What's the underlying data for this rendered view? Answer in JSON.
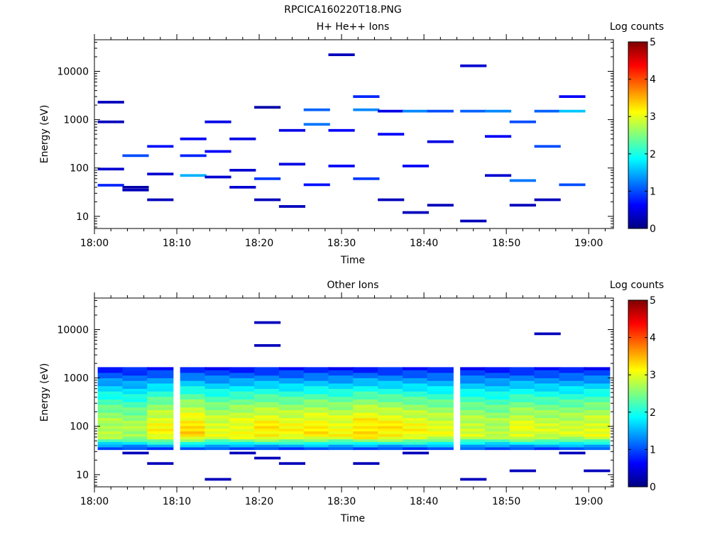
{
  "figure_title": "RPCICA160220T18.PNG",
  "colors": {
    "colormap": [
      "#00007f",
      "#0000ff",
      "#007fff",
      "#00ffff",
      "#7fff7f",
      "#ffff00",
      "#ff7f00",
      "#ff0000",
      "#7f0000"
    ],
    "axis": "#000000",
    "background": "#ffffff"
  },
  "chart_data": [
    {
      "type": "heatmap",
      "title": "H+ He++ Ions",
      "xlabel": "Time",
      "ylabel": "Energy (eV)",
      "x_tick_labels": [
        "18:00",
        "18:10",
        "18:20",
        "18:30",
        "18:40",
        "18:50",
        "19:00"
      ],
      "xlim": [
        "18:00",
        "19:03"
      ],
      "y_scale": "log",
      "ylim": [
        5.6,
        45000
      ],
      "y_tick_labels": [
        "10",
        "100",
        "1000",
        "10000"
      ],
      "colorbar": {
        "label": "Log counts",
        "range": [
          0,
          5
        ],
        "tick_labels": [
          "0",
          "1",
          "2",
          "3",
          "4",
          "5"
        ]
      },
      "time_bins": [
        "18:02",
        "18:05",
        "18:08",
        "18:12",
        "18:15",
        "18:18",
        "18:21",
        "18:24",
        "18:27",
        "18:30",
        "18:33",
        "18:36",
        "18:39",
        "18:42",
        "18:46",
        "18:49",
        "18:52",
        "18:55",
        "18:58",
        "19:01"
      ],
      "cells": [
        {
          "t": 0,
          "e": 2300,
          "v": 0.3
        },
        {
          "t": 0,
          "e": 900,
          "v": 0.3
        },
        {
          "t": 0,
          "e": 95,
          "v": 0.4
        },
        {
          "t": 0,
          "e": 44,
          "v": 0.8
        },
        {
          "t": 1,
          "e": 40,
          "v": 0.2
        },
        {
          "t": 1,
          "e": 35,
          "v": 0.3
        },
        {
          "t": 1,
          "e": 180,
          "v": 1.0
        },
        {
          "t": 2,
          "e": 75,
          "v": 0.4
        },
        {
          "t": 2,
          "e": 280,
          "v": 0.7
        },
        {
          "t": 2,
          "e": 22,
          "v": 0.3
        },
        {
          "t": 3,
          "e": 70,
          "v": 1.5
        },
        {
          "t": 3,
          "e": 400,
          "v": 0.6
        },
        {
          "t": 3,
          "e": 180,
          "v": 0.8
        },
        {
          "t": 4,
          "e": 220,
          "v": 0.6
        },
        {
          "t": 4,
          "e": 65,
          "v": 0.4
        },
        {
          "t": 4,
          "e": 900,
          "v": 0.5
        },
        {
          "t": 5,
          "e": 90,
          "v": 0.4
        },
        {
          "t": 5,
          "e": 40,
          "v": 0.4
        },
        {
          "t": 5,
          "e": 400,
          "v": 0.5
        },
        {
          "t": 6,
          "e": 60,
          "v": 0.9
        },
        {
          "t": 6,
          "e": 22,
          "v": 0.3
        },
        {
          "t": 6,
          "e": 1800,
          "v": 0.2
        },
        {
          "t": 7,
          "e": 120,
          "v": 0.5
        },
        {
          "t": 7,
          "e": 16,
          "v": 0.3
        },
        {
          "t": 7,
          "e": 600,
          "v": 0.5
        },
        {
          "t": 8,
          "e": 1600,
          "v": 1.1
        },
        {
          "t": 8,
          "e": 800,
          "v": 1.2
        },
        {
          "t": 8,
          "e": 45,
          "v": 0.7
        },
        {
          "t": 9,
          "e": 110,
          "v": 0.6
        },
        {
          "t": 9,
          "e": 22000,
          "v": 0.3
        },
        {
          "t": 9,
          "e": 600,
          "v": 0.6
        },
        {
          "t": 10,
          "e": 1600,
          "v": 1.3
        },
        {
          "t": 10,
          "e": 60,
          "v": 0.9
        },
        {
          "t": 10,
          "e": 3000,
          "v": 0.8
        },
        {
          "t": 11,
          "e": 1500,
          "v": 0.5
        },
        {
          "t": 11,
          "e": 500,
          "v": 0.6
        },
        {
          "t": 11,
          "e": 22,
          "v": 0.3
        },
        {
          "t": 12,
          "e": 1500,
          "v": 1.3
        },
        {
          "t": 12,
          "e": 110,
          "v": 0.6
        },
        {
          "t": 12,
          "e": 12,
          "v": 0.3
        },
        {
          "t": 13,
          "e": 1500,
          "v": 1.0
        },
        {
          "t": 13,
          "e": 350,
          "v": 0.5
        },
        {
          "t": 13,
          "e": 17,
          "v": 0.3
        },
        {
          "t": 14,
          "e": 1500,
          "v": 1.1
        },
        {
          "t": 14,
          "e": 13000,
          "v": 0.4
        },
        {
          "t": 14,
          "e": 8,
          "v": 0.3
        },
        {
          "t": 15,
          "e": 1500,
          "v": 1.3
        },
        {
          "t": 15,
          "e": 70,
          "v": 0.4
        },
        {
          "t": 15,
          "e": 450,
          "v": 0.6
        },
        {
          "t": 16,
          "e": 900,
          "v": 1.0
        },
        {
          "t": 16,
          "e": 55,
          "v": 1.2
        },
        {
          "t": 16,
          "e": 17,
          "v": 0.3
        },
        {
          "t": 17,
          "e": 280,
          "v": 1.0
        },
        {
          "t": 17,
          "e": 1500,
          "v": 1.1
        },
        {
          "t": 17,
          "e": 22,
          "v": 0.3
        },
        {
          "t": 18,
          "e": 1500,
          "v": 1.6
        },
        {
          "t": 18,
          "e": 45,
          "v": 1.0
        },
        {
          "t": 18,
          "e": 3000,
          "v": 0.6
        }
      ]
    },
    {
      "type": "heatmap",
      "title": "Other Ions",
      "xlabel": "Time",
      "ylabel": "Energy (eV)",
      "x_tick_labels": [
        "18:00",
        "18:10",
        "18:20",
        "18:30",
        "18:40",
        "18:50",
        "19:00"
      ],
      "xlim": [
        "18:00",
        "19:03"
      ],
      "y_scale": "log",
      "ylim": [
        5.6,
        45000
      ],
      "y_tick_labels": [
        "10",
        "100",
        "1000",
        "10000"
      ],
      "colorbar": {
        "label": "Log counts",
        "range": [
          0,
          5
        ],
        "tick_labels": [
          "0",
          "1",
          "2",
          "3",
          "4",
          "5"
        ]
      },
      "time_bins": [
        "18:02",
        "18:05",
        "18:08",
        "18:12",
        "18:15",
        "18:18",
        "18:21",
        "18:24",
        "18:27",
        "18:30",
        "18:33",
        "18:36",
        "18:39",
        "18:42",
        "18:46",
        "18:49",
        "18:52",
        "18:55",
        "18:58",
        "19:01"
      ],
      "band": {
        "e_min": 33,
        "e_max": 1500,
        "peak_energy": 80,
        "peak_log_counts": [
          2.8,
          2.7,
          3.1,
          3.3,
          3.0,
          3.1,
          3.2,
          3.1,
          3.2,
          3.1,
          3.3,
          3.2,
          3.1,
          3.0,
          2.9,
          2.8,
          3.0,
          2.9,
          2.9,
          3.0
        ]
      },
      "cells": [
        {
          "t": 1,
          "e": 28,
          "v": 0.3
        },
        {
          "t": 2,
          "e": 17,
          "v": 0.3
        },
        {
          "t": 4,
          "e": 8,
          "v": 0.3
        },
        {
          "t": 5,
          "e": 28,
          "v": 0.3
        },
        {
          "t": 6,
          "e": 14000,
          "v": 0.3
        },
        {
          "t": 6,
          "e": 4700,
          "v": 0.3
        },
        {
          "t": 6,
          "e": 22,
          "v": 0.3
        },
        {
          "t": 7,
          "e": 17,
          "v": 0.3
        },
        {
          "t": 10,
          "e": 17,
          "v": 0.3
        },
        {
          "t": 12,
          "e": 28,
          "v": 0.3
        },
        {
          "t": 14,
          "e": 8,
          "v": 0.3
        },
        {
          "t": 16,
          "e": 12,
          "v": 0.3
        },
        {
          "t": 17,
          "e": 8200,
          "v": 0.3
        },
        {
          "t": 18,
          "e": 28,
          "v": 0.3
        },
        {
          "t": 19,
          "e": 12,
          "v": 0.3
        }
      ]
    }
  ]
}
